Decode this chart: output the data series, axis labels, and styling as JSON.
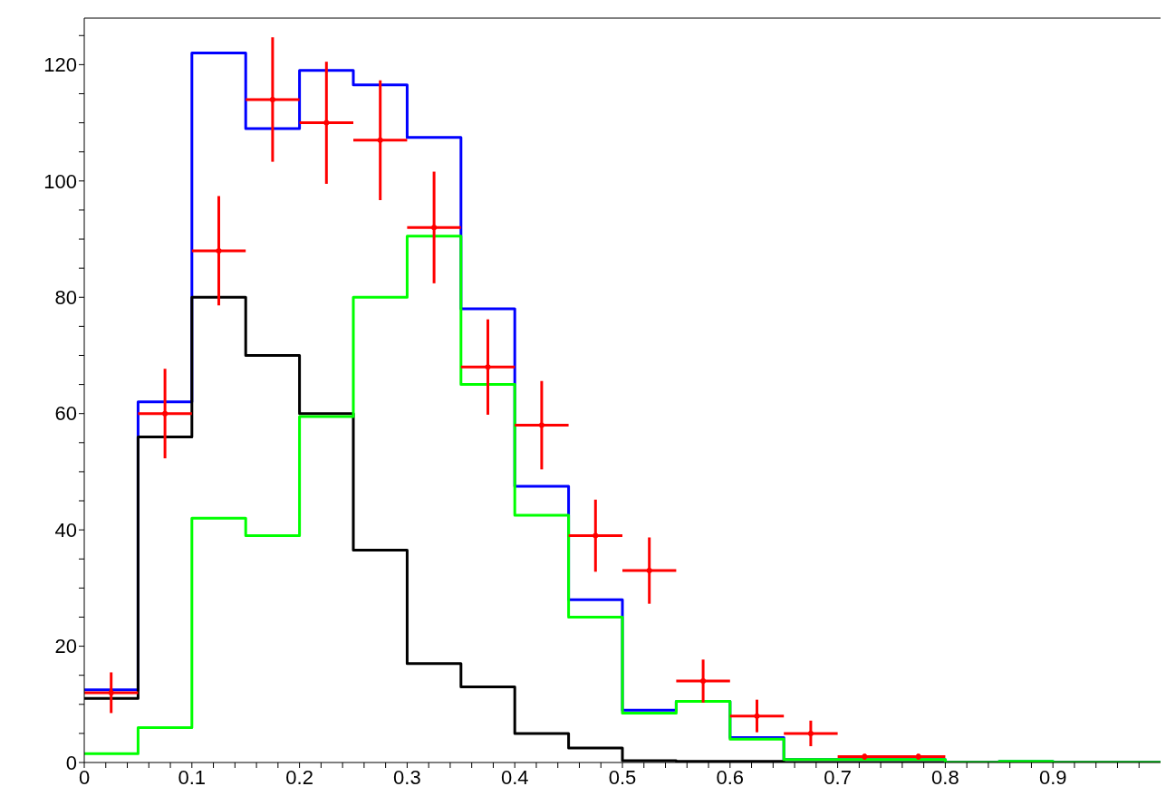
{
  "chart_data": {
    "type": "histogram",
    "bins": [
      0,
      0.05,
      0.1,
      0.15,
      0.2,
      0.25,
      0.3,
      0.35,
      0.4,
      0.45,
      0.5,
      0.55,
      0.6,
      0.65,
      0.7,
      0.75,
      0.8,
      0.85,
      0.9,
      0.95,
      1
    ],
    "series": [
      {
        "color": "#0000ff",
        "values": [
          12.5,
          62,
          122,
          109,
          119,
          116.5,
          107.5,
          78,
          47.5,
          28,
          9,
          10.5,
          4.3,
          0.5,
          0.5,
          0.5,
          0,
          0.2,
          0,
          0
        ]
      },
      {
        "color": "#000000",
        "values": [
          11,
          56,
          80,
          70,
          60,
          36.5,
          17,
          13,
          5,
          2.5,
          0.3,
          0.2,
          0.2,
          0,
          0,
          0,
          0,
          0,
          0,
          0
        ]
      },
      {
        "color": "#00ff00",
        "values": [
          1.5,
          6,
          42,
          39,
          59.5,
          80,
          90.5,
          65,
          42.5,
          25,
          8.5,
          10.5,
          4,
          0.5,
          0.5,
          0.5,
          0,
          0.2,
          0,
          0
        ]
      },
      {
        "type": "scatter",
        "color": "#ff0000",
        "x": [
          0.025,
          0.075,
          0.125,
          0.175,
          0.225,
          0.275,
          0.325,
          0.375,
          0.425,
          0.475,
          0.525,
          0.575,
          0.625,
          0.675,
          0.725,
          0.775
        ],
        "values": [
          12,
          60,
          88,
          114,
          110,
          107,
          92,
          68,
          58,
          39,
          33,
          14,
          8,
          5,
          1,
          1
        ],
        "errors": [
          3.5,
          7.7,
          9.4,
          10.7,
          10.5,
          10.3,
          9.6,
          8.2,
          7.6,
          6.2,
          5.7,
          3.7,
          2.8,
          2.2,
          0.5,
          0.5
        ],
        "xerrors": [
          0.025,
          0.025,
          0.025,
          0.025,
          0.025,
          0.025,
          0.025,
          0.025,
          0.025,
          0.025,
          0.025,
          0.025,
          0.025,
          0.025,
          0.025,
          0.025
        ]
      }
    ],
    "xlim": [
      0,
      1
    ],
    "ylim": [
      0,
      128
    ],
    "xticks": [
      0,
      {
        "value": 0.02,
        "label": null
      },
      {
        "value": 0.04,
        "label": null
      },
      {
        "value": 0.06,
        "label": null
      },
      {
        "value": 0.08,
        "label": null
      },
      0.1,
      {
        "value": 0.12,
        "label": null
      },
      {
        "value": 0.14,
        "label": null
      },
      {
        "value": 0.16,
        "label": null
      },
      {
        "value": 0.18,
        "label": null
      },
      0.2,
      {
        "value": 0.22,
        "label": null
      },
      {
        "value": 0.24,
        "label": null
      },
      {
        "value": 0.26,
        "label": null
      },
      {
        "value": 0.28,
        "label": null
      },
      0.3,
      {
        "value": 0.32,
        "label": null
      },
      {
        "value": 0.34,
        "label": null
      },
      {
        "value": 0.36,
        "label": null
      },
      {
        "value": 0.38,
        "label": null
      },
      0.4,
      {
        "value": 0.42,
        "label": null
      },
      {
        "value": 0.44,
        "label": null
      },
      {
        "value": 0.46,
        "label": null
      },
      {
        "value": 0.48,
        "label": null
      },
      0.5,
      {
        "value": 0.52,
        "label": null
      },
      {
        "value": 0.54,
        "label": null
      },
      {
        "value": 0.56,
        "label": null
      },
      {
        "value": 0.58,
        "label": null
      },
      0.6,
      {
        "value": 0.62,
        "label": null
      },
      {
        "value": 0.64,
        "label": null
      },
      {
        "value": 0.66,
        "label": null
      },
      {
        "value": 0.68,
        "label": null
      },
      0.7,
      {
        "value": 0.72,
        "label": null
      },
      {
        "value": 0.74,
        "label": null
      },
      {
        "value": 0.76,
        "label": null
      },
      {
        "value": 0.78,
        "label": null
      },
      0.8,
      {
        "value": 0.82,
        "label": null
      },
      {
        "value": 0.84,
        "label": null
      },
      {
        "value": 0.86,
        "label": null
      },
      {
        "value": 0.88,
        "label": null
      },
      0.9,
      {
        "value": 0.92,
        "label": null
      },
      {
        "value": 0.94,
        "label": null
      },
      {
        "value": 0.96,
        "label": null
      },
      {
        "value": 0.98,
        "label": null
      }
    ],
    "yticks": [
      0,
      {
        "value": 5,
        "label": null
      },
      {
        "value": 10,
        "label": null
      },
      {
        "value": 15,
        "label": null
      },
      20,
      {
        "value": 25,
        "label": null
      },
      {
        "value": 30,
        "label": null
      },
      {
        "value": 35,
        "label": null
      },
      40,
      {
        "value": 45,
        "label": null
      },
      {
        "value": 50,
        "label": null
      },
      {
        "value": 55,
        "label": null
      },
      60,
      {
        "value": 65,
        "label": null
      },
      {
        "value": 70,
        "label": null
      },
      {
        "value": 75,
        "label": null
      },
      80,
      {
        "value": 85,
        "label": null
      },
      {
        "value": 90,
        "label": null
      },
      {
        "value": 95,
        "label": null
      },
      100,
      {
        "value": 105,
        "label": null
      },
      {
        "value": 110,
        "label": null
      },
      {
        "value": 115,
        "label": null
      },
      120,
      {
        "value": 125,
        "label": null
      }
    ]
  }
}
